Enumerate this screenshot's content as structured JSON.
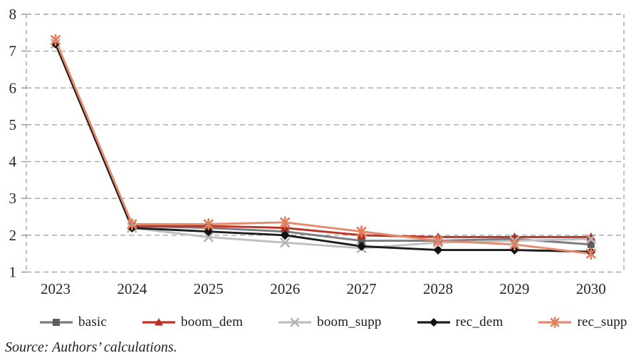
{
  "chart_data": {
    "type": "line",
    "title": "",
    "xlabel": "",
    "ylabel": "",
    "x": [
      "2023",
      "2024",
      "2025",
      "2026",
      "2027",
      "2028",
      "2029",
      "2030"
    ],
    "yticks": [
      "1",
      "2",
      "3",
      "4",
      "5",
      "6",
      "7",
      "8"
    ],
    "ylim": [
      1,
      8
    ],
    "grid": "dashed-horizontal",
    "plot_border": "dashed",
    "legend_position": "bottom",
    "series": [
      {
        "name": "basic",
        "marker": "square",
        "line_color": "#7b7b7f",
        "marker_color": "#5d5d61",
        "values": [
          7.2,
          2.25,
          2.2,
          2.1,
          1.85,
          1.85,
          1.9,
          1.75
        ]
      },
      {
        "name": "boom_dem",
        "marker": "triangle",
        "line_color": "#bd3425",
        "marker_color": "#b52f20",
        "values": [
          7.2,
          2.25,
          2.25,
          2.2,
          2.0,
          1.95,
          1.95,
          1.95
        ]
      },
      {
        "name": "boom_supp",
        "marker": "x",
        "line_color": "#bfbfbf",
        "marker_color": "#b5b5b5",
        "values": [
          7.2,
          2.2,
          1.95,
          1.8,
          1.65,
          1.8,
          1.85,
          1.9
        ]
      },
      {
        "name": "rec_dem",
        "marker": "diamond",
        "line_color": "#1d1d1d",
        "marker_color": "#111111",
        "values": [
          7.2,
          2.2,
          2.1,
          2.0,
          1.7,
          1.6,
          1.6,
          1.55
        ]
      },
      {
        "name": "rec_supp",
        "marker": "asterisk",
        "line_color": "#e58a6c",
        "marker_color": "#e0805f",
        "values": [
          7.3,
          2.3,
          2.3,
          2.35,
          2.1,
          1.85,
          1.75,
          1.5
        ]
      }
    ]
  },
  "colors": {
    "grid": "#a8a8a8",
    "border": "#a8a8a8",
    "tick": "#8a8a8a",
    "axis_text": "#272727",
    "background": "#ffffff"
  },
  "source_note": "Source: Authors’ calculations."
}
